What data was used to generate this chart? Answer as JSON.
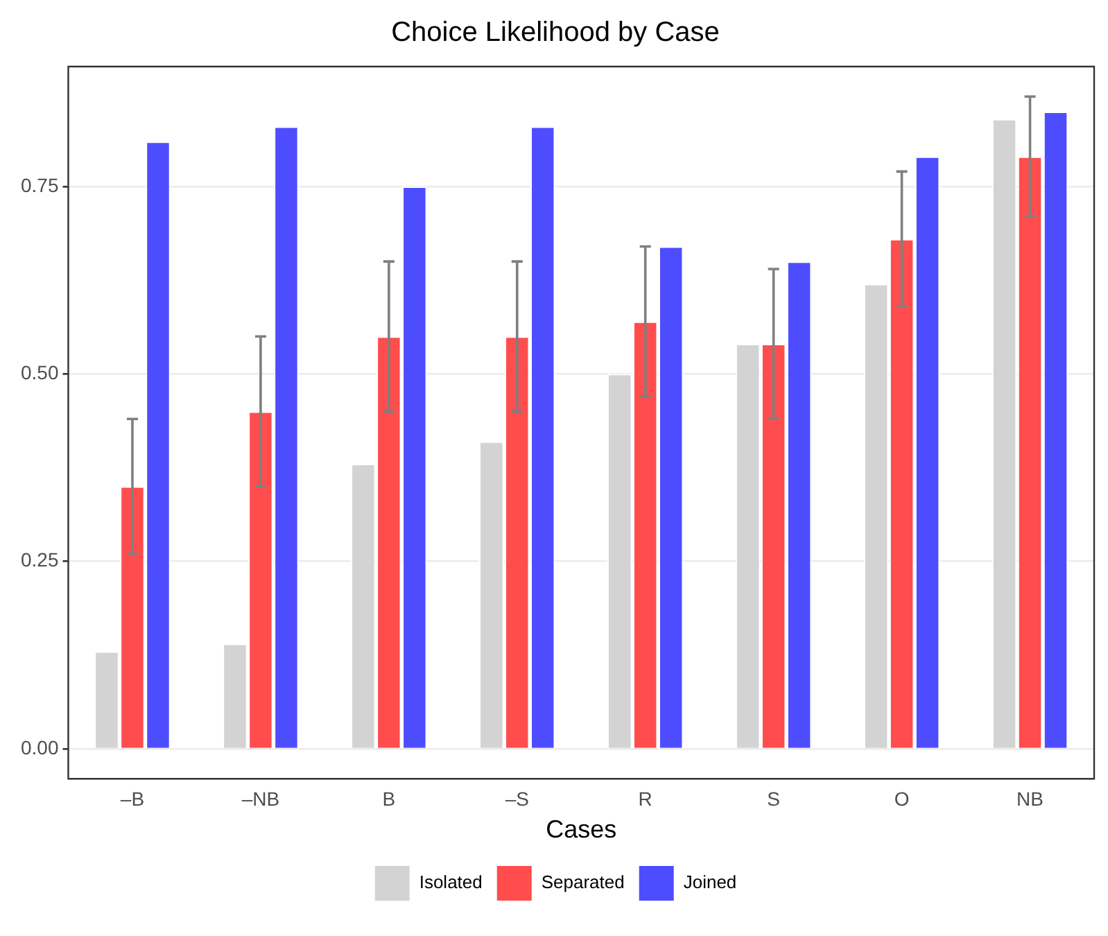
{
  "chart_data": {
    "type": "bar",
    "title": "Choice Likelihood by Case",
    "xlabel": "Cases",
    "categories": [
      "–B",
      "–NB",
      "B",
      "–S",
      "R",
      "S",
      "O",
      "NB"
    ],
    "series": [
      {
        "name": "Isolated",
        "color": "#d3d3d3",
        "values": [
          0.13,
          0.14,
          0.38,
          0.41,
          0.5,
          0.54,
          0.62,
          0.84
        ]
      },
      {
        "name": "Separated",
        "color": "#ff4d4d",
        "values": [
          0.35,
          0.45,
          0.55,
          0.55,
          0.57,
          0.54,
          0.68,
          0.79
        ],
        "errors": [
          [
            0.26,
            0.44
          ],
          [
            0.35,
            0.55
          ],
          [
            0.45,
            0.65
          ],
          [
            0.45,
            0.65
          ],
          [
            0.47,
            0.67
          ],
          [
            0.44,
            0.64
          ],
          [
            0.59,
            0.77
          ],
          [
            0.71,
            0.87
          ]
        ]
      },
      {
        "name": "Joined",
        "color": "#4d4dff",
        "values": [
          0.81,
          0.83,
          0.75,
          0.83,
          0.67,
          0.65,
          0.79,
          0.85
        ]
      }
    ],
    "ylim": [
      -0.04,
      0.91
    ],
    "yticks": [
      {
        "value": 0,
        "label": "0.00"
      },
      {
        "value": 0.25,
        "label": "0.25"
      },
      {
        "value": 0.5,
        "label": "0.50"
      },
      {
        "value": 0.75,
        "label": "0.75"
      }
    ],
    "grid": "y",
    "legend": "bottom"
  }
}
